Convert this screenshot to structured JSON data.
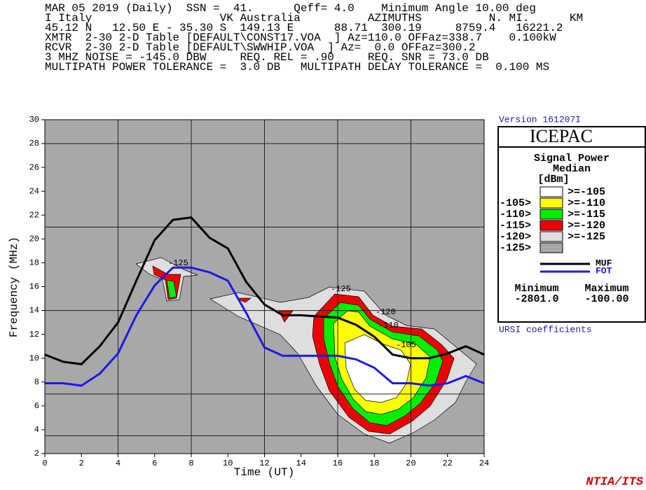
{
  "header": {
    "lines": [
      "MAR 05 2019 (Daily)  SSN =  41.      Qeff= 4.0    Minimum Angle 10.00 deg",
      "I Italy                   VK Australia          AZIMUTHS          N. MI.      KM",
      "45.12 N   12.50 E - 35.30 S  149.13 E      88.71  300.19     8759.4   16221.2",
      "XMTR  2-30 2-D Table [DEFAULT\\CONST17.VOA  ] Az=110.0 OFFaz=338.7    0.100kW",
      "RCVR  2-30 2-D Table [DEFAULT\\SWWHIP.VOA  ] Az=  0.0 OFFaz=300.2",
      "3 MHZ NOISE = -145.0 DBW     REQ. REL = .90     REQ. SNR = 73.0 DB",
      "MULTIPATH POWER TOLERANCE =  3.0 DB   MULTIPATH DELAY TOLERANCE =  0.100 MS"
    ]
  },
  "chart_data": {
    "type": "line",
    "x_label": "Time (UT)",
    "y_label": "Frequency (MHz)",
    "x": [
      0,
      1,
      2,
      3,
      4,
      5,
      6,
      7,
      8,
      9,
      10,
      11,
      12,
      13,
      14,
      15,
      16,
      17,
      18,
      19,
      20,
      21,
      22,
      23,
      24
    ],
    "series": [
      {
        "name": "MUF",
        "color": "#000000",
        "values": [
          10.3,
          9.7,
          9.5,
          11,
          13,
          16.5,
          19.9,
          21.6,
          21.8,
          20.1,
          19.2,
          16.4,
          14.5,
          13.6,
          13.6,
          13.5,
          13.4,
          12.8,
          11.8,
          10.3,
          10.0,
          10.0,
          10.4,
          11.0,
          10.3
        ]
      },
      {
        "name": "FOT",
        "color": "#1a1ae6",
        "values": [
          7.9,
          7.9,
          7.7,
          8.7,
          10.4,
          13.6,
          16.1,
          17.6,
          17.6,
          17.2,
          16.5,
          13.8,
          10.9,
          10.2,
          10.2,
          10.2,
          10.2,
          9.9,
          9.2,
          7.9,
          7.9,
          7.7,
          7.9,
          8.5,
          7.9
        ]
      }
    ],
    "xlim": [
      0,
      24
    ],
    "xticks": [
      0,
      2,
      4,
      6,
      8,
      10,
      12,
      14,
      16,
      18,
      20,
      22,
      24
    ],
    "ylim": [
      2,
      30
    ],
    "yticks": [
      2,
      4,
      6,
      8,
      10,
      12,
      14,
      16,
      18,
      20,
      22,
      24,
      26,
      28,
      30
    ],
    "grid_x": [
      4,
      8,
      12,
      16,
      20
    ],
    "grid_y": [
      3.5,
      7,
      14,
      21,
      28
    ],
    "annotations": [
      "-125",
      "-125",
      "-120",
      "-110",
      "-105"
    ]
  },
  "legend": {
    "version": "Version 161207I",
    "program": "ICEPAC",
    "title": "Signal Power",
    "subtitle": "Median",
    "units": "[dBm]",
    "levels": [
      {
        "label": ">=-105",
        "color": "#ffffff"
      },
      {
        "label": ">=-110",
        "color": "#ffff00"
      },
      {
        "label": ">=-115",
        "color": "#00ee00"
      },
      {
        "label": ">=-120",
        "color": "#ee0000"
      },
      {
        "label": ">=-125",
        "color": "#dedede"
      },
      {
        "color": "#a8a8a8"
      }
    ],
    "thresholds": [
      "-105>",
      "-110>",
      "-115>",
      "-120>",
      "-125>"
    ],
    "min_label": "Minimum",
    "max_label": "Maximum",
    "min_value": "-2801.0",
    "max_value": "-100.00"
  },
  "footer": {
    "coefficients": "URSI coefficients",
    "credit": "NTIA/ITS"
  }
}
